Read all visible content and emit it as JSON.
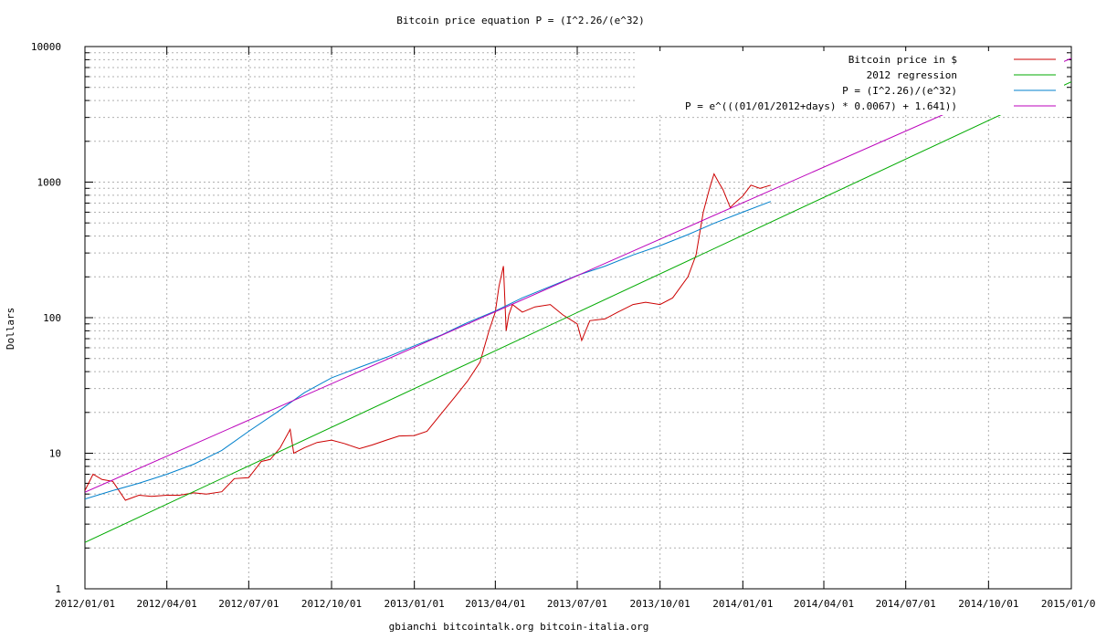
{
  "chart_data": {
    "type": "line",
    "title": "Bitcoin price equation P = (I^2.26/(e^32)",
    "ylabel": "Dollars",
    "xlabel": "",
    "footer": "gbianchi bitcointalk.org bitcoin-italia.org",
    "y_scale": "log",
    "ylim": [
      1,
      10000
    ],
    "xlim": [
      "2012-01-01",
      "2015-01-01"
    ],
    "grid": true,
    "legend_position": "top-right",
    "y_ticks": [
      {
        "value": 1,
        "label": "1"
      },
      {
        "value": 10,
        "label": "10"
      },
      {
        "value": 100,
        "label": "100"
      },
      {
        "value": 1000,
        "label": "1000"
      },
      {
        "value": 10000,
        "label": "10000"
      }
    ],
    "x_ticks": [
      {
        "date": "2012-01-01",
        "label": "2012/01/01"
      },
      {
        "date": "2012-04-01",
        "label": "2012/04/01"
      },
      {
        "date": "2012-07-01",
        "label": "2012/07/01"
      },
      {
        "date": "2012-10-01",
        "label": "2012/10/01"
      },
      {
        "date": "2013-01-01",
        "label": "2013/01/01"
      },
      {
        "date": "2013-04-01",
        "label": "2013/04/01"
      },
      {
        "date": "2013-07-01",
        "label": "2013/07/01"
      },
      {
        "date": "2013-10-01",
        "label": "2013/10/01"
      },
      {
        "date": "2014-01-01",
        "label": "2014/01/01"
      },
      {
        "date": "2014-04-01",
        "label": "2014/04/01"
      },
      {
        "date": "2014-07-01",
        "label": "2014/07/01"
      },
      {
        "date": "2014-10-01",
        "label": "2014/10/01"
      },
      {
        "date": "2015-01-01",
        "label": "2015/01/01"
      }
    ],
    "series": [
      {
        "name": "Bitcoin price in $",
        "color": "#cc0000",
        "x": [
          "2012-01-01",
          "2012-01-10",
          "2012-01-20",
          "2012-02-01",
          "2012-02-15",
          "2012-03-01",
          "2012-03-15",
          "2012-04-01",
          "2012-04-15",
          "2012-05-01",
          "2012-05-15",
          "2012-06-01",
          "2012-06-15",
          "2012-07-01",
          "2012-07-15",
          "2012-07-25",
          "2012-08-05",
          "2012-08-16",
          "2012-08-20",
          "2012-09-01",
          "2012-09-15",
          "2012-10-01",
          "2012-10-15",
          "2012-11-01",
          "2012-11-15",
          "2012-12-01",
          "2012-12-15",
          "2013-01-01",
          "2013-01-15",
          "2013-02-01",
          "2013-02-15",
          "2013-03-01",
          "2013-03-15",
          "2013-03-25",
          "2013-04-01",
          "2013-04-05",
          "2013-04-10",
          "2013-04-13",
          "2013-04-16",
          "2013-04-20",
          "2013-05-01",
          "2013-05-15",
          "2013-06-01",
          "2013-06-15",
          "2013-07-01",
          "2013-07-06",
          "2013-07-15",
          "2013-08-01",
          "2013-08-15",
          "2013-09-01",
          "2013-09-15",
          "2013-10-01",
          "2013-10-15",
          "2013-11-01",
          "2013-11-10",
          "2013-11-18",
          "2013-11-25",
          "2013-11-30",
          "2013-12-05",
          "2013-12-10",
          "2013-12-18",
          "2013-12-25",
          "2014-01-01",
          "2014-01-10",
          "2014-01-20",
          "2014-02-01"
        ],
        "values": [
          5.3,
          7,
          6.4,
          6.2,
          4.5,
          4.9,
          4.8,
          4.9,
          4.9,
          5.1,
          5.0,
          5.2,
          6.5,
          6.6,
          8.7,
          9.0,
          11,
          15,
          10,
          11,
          12,
          12.5,
          11.8,
          10.8,
          11.5,
          12.5,
          13.4,
          13.5,
          14.5,
          20,
          26,
          34,
          47,
          80,
          110,
          170,
          240,
          80,
          105,
          125,
          110,
          120,
          125,
          105,
          90,
          68,
          95,
          98,
          110,
          125,
          130,
          125,
          140,
          200,
          290,
          600,
          900,
          1150,
          1000,
          880,
          650,
          720,
          790,
          950,
          900,
          950
        ]
      },
      {
        "name": "2012 regression",
        "color": "#00aa00",
        "x": [
          "2012-01-01",
          "2015-01-01"
        ],
        "values": [
          2.2,
          5500
        ]
      },
      {
        "name": "P = (I^2.26)/(e^32)",
        "color": "#0080cc",
        "x": [
          "2012-01-01",
          "2012-02-01",
          "2012-03-01",
          "2012-04-01",
          "2012-05-01",
          "2012-06-01",
          "2012-07-01",
          "2012-08-01",
          "2012-09-01",
          "2012-10-01",
          "2012-11-01",
          "2012-12-01",
          "2013-01-01",
          "2013-02-01",
          "2013-03-01",
          "2013-04-01",
          "2013-05-01",
          "2013-06-01",
          "2013-07-01",
          "2013-08-01",
          "2013-09-01",
          "2013-10-01",
          "2013-11-01",
          "2013-12-01",
          "2014-01-01",
          "2014-02-01"
        ],
        "values": [
          4.6,
          5.3,
          6.0,
          7.0,
          8.3,
          10.5,
          14.5,
          20,
          28,
          36,
          43,
          51,
          62,
          75,
          92,
          112,
          140,
          170,
          205,
          240,
          290,
          340,
          410,
          500,
          600,
          720
        ]
      },
      {
        "name": "P = e^(((01/01/2012+days) * 0.0067) + 1.641))",
        "color": "#bb00bb",
        "x": [
          "2012-01-01",
          "2015-01-01"
        ],
        "values": [
          5.16,
          8200
        ]
      }
    ]
  }
}
